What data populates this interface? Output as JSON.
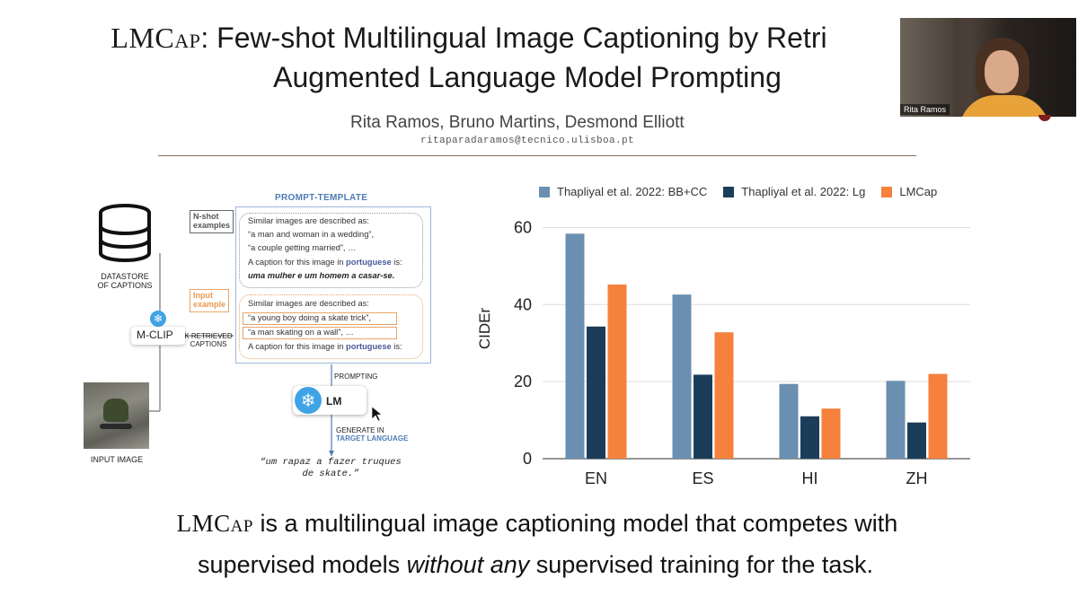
{
  "slide": {
    "title_line1_sc": "LMCap",
    "title_line1_rest": ": Few-shot Multilingual Image Captioning by Retri",
    "title_line2": "Augmented Language Model Prompting",
    "authors": "Rita Ramos, Bruno Martins, Desmond Elliott",
    "email": "ritaparadaramos@tecnico.ulisboa.pt",
    "subtitle_sc": "LMCap",
    "subtitle_line1_rest": " is a multilingual image captioning model that competes with",
    "subtitle_line2_a": "supervised models ",
    "subtitle_line2_em": "without any",
    "subtitle_line2_b": " supervised training for the task."
  },
  "diagram": {
    "datastore_label_1": "DATASTORE",
    "datastore_label_2": "OF CAPTIONS",
    "mclip_label": "M-CLIP",
    "retrieved_label_1": "K RETRIEVED",
    "retrieved_label_2": "CAPTIONS",
    "input_image_label": "INPUT IMAGE",
    "template_title": "PROMPT-TEMPLATE",
    "nshot_tag_1": "N-shot",
    "nshot_tag_2": "examples",
    "input_tag_1": "Input",
    "input_tag_2": "example",
    "nshot_lines": [
      "Similar images are described as:",
      "“a man and woman in a wedding”,",
      "“a couple getting married”, …",
      "A caption for this image in ",
      "uma mulher e um homem a casar-se."
    ],
    "input_lines": [
      "Similar images are described as:",
      "“a young boy doing a skate trick”,",
      "“a man skating on a wall”, …",
      "A caption for this image in "
    ],
    "language_word": "portuguese",
    "is_suffix": " is:",
    "prompting_label": "PROMPTING",
    "lm_label": "LM",
    "generate_label_1": "GENERATE IN",
    "generate_label_2": "TARGET LANGUAGE",
    "generated_caption": "“um rapaz a fazer truques de skate.”"
  },
  "chart_data": {
    "type": "bar",
    "categories": [
      "EN",
      "ES",
      "HI",
      "ZH"
    ],
    "series": [
      {
        "name": "Thapliyal et al. 2022: BB+CC",
        "color": "#6b8fb0",
        "values": [
          58.4,
          42.6,
          19.4,
          20.2
        ]
      },
      {
        "name": "Thapliyal et al. 2022: Lg",
        "color": "#1c3d5a",
        "values": [
          34.3,
          21.8,
          11.0,
          9.4
        ]
      },
      {
        "name": "LMCap",
        "color": "#f5813d",
        "values": [
          45.2,
          32.8,
          13.0,
          22.0
        ]
      }
    ],
    "ylabel": "CIDEr",
    "yticks": [
      0,
      20,
      40,
      60
    ],
    "ylim": [
      0,
      65
    ],
    "grid": true,
    "legend_position": "top"
  },
  "video": {
    "participant_name": "Rita Ramos"
  }
}
